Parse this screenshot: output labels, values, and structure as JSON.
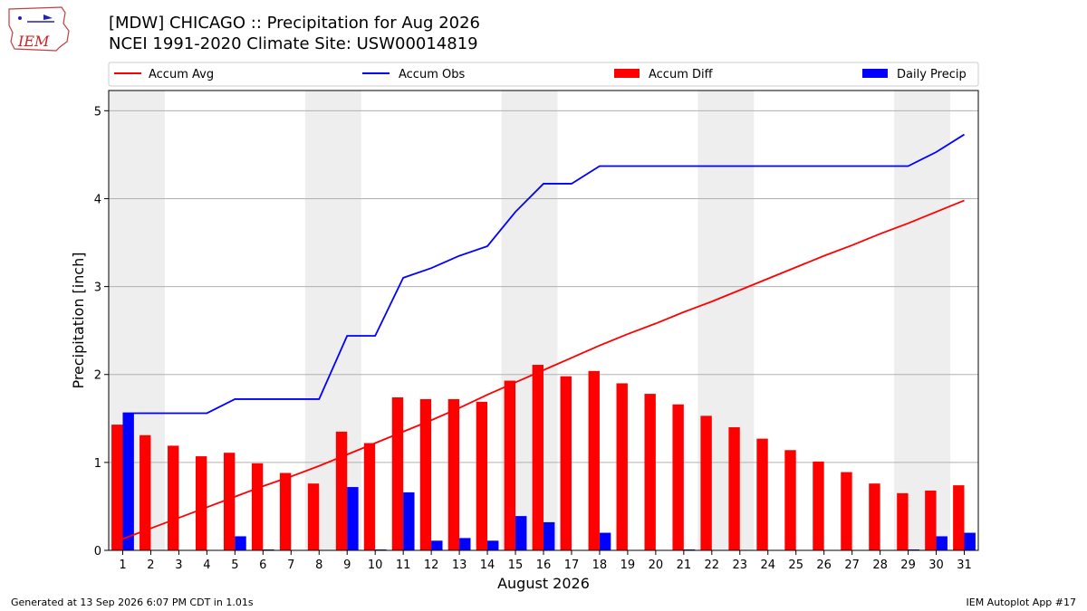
{
  "title_line1": "[MDW] CHICAGO :: Precipitation for Aug 2026",
  "title_line2": "NCEI 1991-2020 Climate Site: USW00014819",
  "logo_text": "IEM",
  "footer_left": "Generated at 13 Sep 2026 6:07 PM CDT in 1.01s",
  "footer_right": "IEM Autoplot App #17",
  "colors": {
    "accum_avg": "#ff0000",
    "accum_obs": "#0000ff",
    "accum_diff": "#ff0000",
    "daily_precip": "#0000ff",
    "weekend_shade": "#eeeeee",
    "grid": "#b0b0b0"
  },
  "chart_data": {
    "type": "bar",
    "xlabel": "August 2026",
    "ylabel": "Precipitation [inch]",
    "xlim": [
      0.5,
      31.5
    ],
    "ylim": [
      0,
      5.23
    ],
    "yticks": [
      0,
      1,
      2,
      3,
      4,
      5
    ],
    "grid": "y",
    "legend_placement": "top",
    "shaded_weekends": [
      [
        1,
        2
      ],
      [
        8,
        9
      ],
      [
        15,
        16
      ],
      [
        22,
        23
      ],
      [
        29,
        30
      ]
    ],
    "categories": [
      1,
      2,
      3,
      4,
      5,
      6,
      7,
      8,
      9,
      10,
      11,
      12,
      13,
      14,
      15,
      16,
      17,
      18,
      19,
      20,
      21,
      22,
      23,
      24,
      25,
      26,
      27,
      28,
      29,
      30,
      31
    ],
    "series": [
      {
        "name": "Accum Avg",
        "kind": "line",
        "values": [
          0.13,
          0.25,
          0.37,
          0.49,
          0.61,
          0.73,
          0.84,
          0.96,
          1.09,
          1.22,
          1.35,
          1.48,
          1.62,
          1.77,
          1.91,
          2.05,
          2.19,
          2.33,
          2.46,
          2.58,
          2.71,
          2.83,
          2.96,
          3.09,
          3.22,
          3.35,
          3.47,
          3.6,
          3.72,
          3.85,
          3.98
        ]
      },
      {
        "name": "Accum Obs",
        "kind": "line",
        "values": [
          1.56,
          1.56,
          1.56,
          1.56,
          1.72,
          1.72,
          1.72,
          1.72,
          2.44,
          2.44,
          3.1,
          3.21,
          3.35,
          3.46,
          3.85,
          4.17,
          4.17,
          4.37,
          4.37,
          4.37,
          4.37,
          4.37,
          4.37,
          4.37,
          4.37,
          4.37,
          4.37,
          4.37,
          4.37,
          4.53,
          4.73
        ]
      },
      {
        "name": "Accum Diff",
        "kind": "bar",
        "values": [
          1.43,
          1.31,
          1.19,
          1.07,
          1.11,
          0.99,
          0.88,
          0.76,
          1.35,
          1.22,
          1.74,
          1.72,
          1.72,
          1.69,
          1.93,
          2.11,
          1.98,
          2.04,
          1.9,
          1.78,
          1.66,
          1.53,
          1.4,
          1.27,
          1.14,
          1.01,
          0.89,
          0.76,
          0.65,
          0.68,
          0.74
        ]
      },
      {
        "name": "Daily Precip",
        "kind": "bar",
        "values": [
          1.56,
          0,
          0,
          0,
          0.16,
          0.01,
          0,
          0,
          0.72,
          0.01,
          0.66,
          0.11,
          0.14,
          0.11,
          0.39,
          0.32,
          0,
          0.2,
          0,
          0,
          0.01,
          0,
          0,
          0,
          0,
          0,
          0,
          0,
          0.01,
          0.16,
          0.2
        ]
      }
    ]
  }
}
